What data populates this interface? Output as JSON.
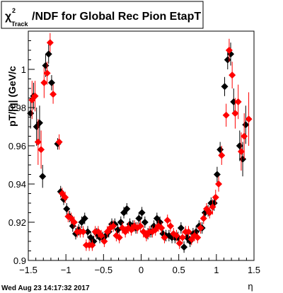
{
  "title": {
    "chi": "χ",
    "sup": "2",
    "sub": "Track",
    "rest": "/NDF for Global Rec Pion EtapT"
  },
  "timestamp": "Wed Aug 23 14:17:32 2017",
  "colors": {
    "black_series": "#000000",
    "red_series": "#ff0000",
    "frame": "#000000"
  },
  "chart_data": {
    "type": "scatter",
    "title": "χ²_Track/NDF for Global Rec Pion EtapT",
    "xlabel": "η",
    "ylabel": "pT/|q| (GeV/c",
    "xlim": [
      -1.5,
      1.5
    ],
    "ylim": [
      0.9,
      1.02
    ],
    "x_ticks": [
      -1.5,
      -1,
      -0.5,
      0,
      0.5,
      1,
      1.5
    ],
    "x_tick_labels": [
      "−1.5",
      "−1",
      "−0.5",
      "0",
      "0.5",
      "1",
      "1.5"
    ],
    "y_ticks": [
      0.9,
      0.92,
      0.94,
      0.96,
      0.98,
      1
    ],
    "y_tick_labels": [
      "0.9",
      "0.92",
      "0.94",
      "0.96",
      "0.98",
      "1"
    ],
    "grid": false,
    "legend": "none",
    "series": [
      {
        "marker": "diamond",
        "color": "#000000",
        "points": [
          {
            "x": -1.47,
            "y": 0.977,
            "err": 0.008
          },
          {
            "x": -1.43,
            "y": 0.986,
            "err": 0.007
          },
          {
            "x": -1.39,
            "y": 0.97,
            "err": 0.01
          },
          {
            "x": -1.35,
            "y": 0.972,
            "err": 0.009
          },
          {
            "x": -1.31,
            "y": 0.944,
            "err": 0.006
          },
          {
            "x": -1.27,
            "y": 1.002,
            "err": 0.006
          },
          {
            "x": -1.23,
            "y": 1.008,
            "err": 0.005
          },
          {
            "x": -1.19,
            "y": 0.993,
            "err": 0.004
          },
          {
            "x": -1.11,
            "y": 0.961,
            "err": 0.003
          },
          {
            "x": -1.07,
            "y": 0.936,
            "err": 0.003
          },
          {
            "x": -1.03,
            "y": 0.932,
            "err": 0.003
          },
          {
            "x": -0.99,
            "y": 0.927,
            "err": 0.003
          },
          {
            "x": -0.95,
            "y": 0.923,
            "err": 0.003
          },
          {
            "x": -0.91,
            "y": 0.918,
            "err": 0.003
          },
          {
            "x": -0.87,
            "y": 0.914,
            "err": 0.003
          },
          {
            "x": -0.83,
            "y": 0.916,
            "err": 0.003
          },
          {
            "x": -0.79,
            "y": 0.92,
            "err": 0.003
          },
          {
            "x": -0.75,
            "y": 0.922,
            "err": 0.003
          },
          {
            "x": -0.71,
            "y": 0.915,
            "err": 0.003
          },
          {
            "x": -0.67,
            "y": 0.912,
            "err": 0.003
          },
          {
            "x": -0.63,
            "y": 0.91,
            "err": 0.003
          },
          {
            "x": -0.59,
            "y": 0.914,
            "err": 0.003
          },
          {
            "x": -0.55,
            "y": 0.912,
            "err": 0.003
          },
          {
            "x": -0.51,
            "y": 0.912,
            "err": 0.003
          },
          {
            "x": -0.47,
            "y": 0.913,
            "err": 0.003
          },
          {
            "x": -0.43,
            "y": 0.915,
            "err": 0.003
          },
          {
            "x": -0.39,
            "y": 0.919,
            "err": 0.003
          },
          {
            "x": -0.35,
            "y": 0.919,
            "err": 0.003
          },
          {
            "x": -0.31,
            "y": 0.916,
            "err": 0.003
          },
          {
            "x": -0.27,
            "y": 0.92,
            "err": 0.003
          },
          {
            "x": -0.23,
            "y": 0.925,
            "err": 0.003
          },
          {
            "x": -0.19,
            "y": 0.927,
            "err": 0.003
          },
          {
            "x": -0.15,
            "y": 0.919,
            "err": 0.003
          },
          {
            "x": -0.11,
            "y": 0.918,
            "err": 0.003
          },
          {
            "x": -0.07,
            "y": 0.917,
            "err": 0.003
          },
          {
            "x": -0.03,
            "y": 0.922,
            "err": 0.003
          },
          {
            "x": 0.01,
            "y": 0.925,
            "err": 0.003
          },
          {
            "x": 0.05,
            "y": 0.92,
            "err": 0.003
          },
          {
            "x": 0.09,
            "y": 0.914,
            "err": 0.003
          },
          {
            "x": 0.13,
            "y": 0.915,
            "err": 0.003
          },
          {
            "x": 0.17,
            "y": 0.918,
            "err": 0.003
          },
          {
            "x": 0.21,
            "y": 0.922,
            "err": 0.003
          },
          {
            "x": 0.25,
            "y": 0.92,
            "err": 0.003
          },
          {
            "x": 0.29,
            "y": 0.914,
            "err": 0.003
          },
          {
            "x": 0.33,
            "y": 0.913,
            "err": 0.003
          },
          {
            "x": 0.37,
            "y": 0.913,
            "err": 0.003
          },
          {
            "x": 0.41,
            "y": 0.912,
            "err": 0.003
          },
          {
            "x": 0.45,
            "y": 0.912,
            "err": 0.003
          },
          {
            "x": 0.49,
            "y": 0.912,
            "err": 0.003
          },
          {
            "x": 0.53,
            "y": 0.917,
            "err": 0.003
          },
          {
            "x": 0.57,
            "y": 0.907,
            "err": 0.003
          },
          {
            "x": 0.61,
            "y": 0.912,
            "err": 0.003
          },
          {
            "x": 0.65,
            "y": 0.91,
            "err": 0.003
          },
          {
            "x": 0.69,
            "y": 0.914,
            "err": 0.003
          },
          {
            "x": 0.73,
            "y": 0.915,
            "err": 0.003
          },
          {
            "x": 0.77,
            "y": 0.918,
            "err": 0.003
          },
          {
            "x": 0.81,
            "y": 0.917,
            "err": 0.003
          },
          {
            "x": 0.85,
            "y": 0.925,
            "err": 0.003
          },
          {
            "x": 0.89,
            "y": 0.926,
            "err": 0.003
          },
          {
            "x": 0.93,
            "y": 0.93,
            "err": 0.003
          },
          {
            "x": 0.97,
            "y": 0.93,
            "err": 0.004
          },
          {
            "x": 1.01,
            "y": 0.945,
            "err": 0.004
          },
          {
            "x": 1.05,
            "y": 0.958,
            "err": 0.004
          },
          {
            "x": 1.11,
            "y": 0.991,
            "err": 0.005
          },
          {
            "x": 1.15,
            "y": 1.005,
            "err": 0.005
          },
          {
            "x": 1.19,
            "y": 1.008,
            "err": 0.006
          },
          {
            "x": 1.23,
            "y": 0.983,
            "err": 0.007
          },
          {
            "x": 1.31,
            "y": 0.96,
            "err": 0.008
          },
          {
            "x": 1.35,
            "y": 0.953,
            "err": 0.009
          },
          {
            "x": 1.39,
            "y": 0.971,
            "err": 0.01
          }
        ]
      },
      {
        "marker": "diamond",
        "color": "#ff0000",
        "points": [
          {
            "x": -1.45,
            "y": 0.984,
            "err": 0.01
          },
          {
            "x": -1.41,
            "y": 0.986,
            "err": 0.008
          },
          {
            "x": -1.37,
            "y": 0.962,
            "err": 0.012
          },
          {
            "x": -1.33,
            "y": 0.958,
            "err": 0.01
          },
          {
            "x": -1.29,
            "y": 0.993,
            "err": 0.008
          },
          {
            "x": -1.25,
            "y": 0.998,
            "err": 0.006
          },
          {
            "x": -1.21,
            "y": 1.014,
            "err": 0.005
          },
          {
            "x": -1.17,
            "y": 0.987,
            "err": 0.005
          },
          {
            "x": -1.09,
            "y": 0.962,
            "err": 0.004
          },
          {
            "x": -1.05,
            "y": 0.935,
            "err": 0.003
          },
          {
            "x": -1.01,
            "y": 0.933,
            "err": 0.003
          },
          {
            "x": -0.97,
            "y": 0.923,
            "err": 0.003
          },
          {
            "x": -0.93,
            "y": 0.922,
            "err": 0.003
          },
          {
            "x": -0.89,
            "y": 0.92,
            "err": 0.003
          },
          {
            "x": -0.85,
            "y": 0.915,
            "err": 0.003
          },
          {
            "x": -0.81,
            "y": 0.915,
            "err": 0.003
          },
          {
            "x": -0.77,
            "y": 0.915,
            "err": 0.003
          },
          {
            "x": -0.73,
            "y": 0.908,
            "err": 0.003
          },
          {
            "x": -0.69,
            "y": 0.908,
            "err": 0.003
          },
          {
            "x": -0.65,
            "y": 0.908,
            "err": 0.003
          },
          {
            "x": -0.61,
            "y": 0.915,
            "err": 0.003
          },
          {
            "x": -0.57,
            "y": 0.915,
            "err": 0.003
          },
          {
            "x": -0.53,
            "y": 0.913,
            "err": 0.003
          },
          {
            "x": -0.49,
            "y": 0.91,
            "err": 0.003
          },
          {
            "x": -0.45,
            "y": 0.915,
            "err": 0.003
          },
          {
            "x": -0.41,
            "y": 0.917,
            "err": 0.003
          },
          {
            "x": -0.37,
            "y": 0.918,
            "err": 0.003
          },
          {
            "x": -0.33,
            "y": 0.913,
            "err": 0.003
          },
          {
            "x": -0.29,
            "y": 0.912,
            "err": 0.003
          },
          {
            "x": -0.25,
            "y": 0.917,
            "err": 0.003
          },
          {
            "x": -0.21,
            "y": 0.915,
            "err": 0.003
          },
          {
            "x": -0.17,
            "y": 0.917,
            "err": 0.003
          },
          {
            "x": -0.13,
            "y": 0.916,
            "err": 0.003
          },
          {
            "x": -0.09,
            "y": 0.918,
            "err": 0.003
          },
          {
            "x": -0.05,
            "y": 0.917,
            "err": 0.003
          },
          {
            "x": -0.01,
            "y": 0.918,
            "err": 0.003
          },
          {
            "x": 0.03,
            "y": 0.915,
            "err": 0.003
          },
          {
            "x": 0.07,
            "y": 0.913,
            "err": 0.003
          },
          {
            "x": 0.11,
            "y": 0.915,
            "err": 0.003
          },
          {
            "x": 0.15,
            "y": 0.915,
            "err": 0.003
          },
          {
            "x": 0.19,
            "y": 0.916,
            "err": 0.003
          },
          {
            "x": 0.23,
            "y": 0.918,
            "err": 0.003
          },
          {
            "x": 0.27,
            "y": 0.917,
            "err": 0.003
          },
          {
            "x": 0.31,
            "y": 0.912,
            "err": 0.003
          },
          {
            "x": 0.35,
            "y": 0.921,
            "err": 0.003
          },
          {
            "x": 0.39,
            "y": 0.918,
            "err": 0.003
          },
          {
            "x": 0.43,
            "y": 0.914,
            "err": 0.003
          },
          {
            "x": 0.47,
            "y": 0.913,
            "err": 0.003
          },
          {
            "x": 0.51,
            "y": 0.909,
            "err": 0.003
          },
          {
            "x": 0.55,
            "y": 0.912,
            "err": 0.003
          },
          {
            "x": 0.59,
            "y": 0.915,
            "err": 0.003
          },
          {
            "x": 0.63,
            "y": 0.915,
            "err": 0.003
          },
          {
            "x": 0.67,
            "y": 0.911,
            "err": 0.003
          },
          {
            "x": 0.71,
            "y": 0.913,
            "err": 0.003
          },
          {
            "x": 0.75,
            "y": 0.912,
            "err": 0.003
          },
          {
            "x": 0.79,
            "y": 0.917,
            "err": 0.003
          },
          {
            "x": 0.83,
            "y": 0.922,
            "err": 0.003
          },
          {
            "x": 0.87,
            "y": 0.927,
            "err": 0.003
          },
          {
            "x": 0.91,
            "y": 0.925,
            "err": 0.003
          },
          {
            "x": 0.95,
            "y": 0.928,
            "err": 0.004
          },
          {
            "x": 0.99,
            "y": 0.933,
            "err": 0.004
          },
          {
            "x": 1.03,
            "y": 0.94,
            "err": 0.004
          },
          {
            "x": 1.07,
            "y": 0.955,
            "err": 0.005
          },
          {
            "x": 1.13,
            "y": 0.976,
            "err": 0.006
          },
          {
            "x": 1.17,
            "y": 1.01,
            "err": 0.006
          },
          {
            "x": 1.21,
            "y": 0.997,
            "err": 0.007
          },
          {
            "x": 1.25,
            "y": 0.977,
            "err": 0.008
          },
          {
            "x": 1.29,
            "y": 0.983,
            "err": 0.009
          },
          {
            "x": 1.33,
            "y": 0.957,
            "err": 0.01
          },
          {
            "x": 1.37,
            "y": 0.965,
            "err": 0.012
          },
          {
            "x": 1.43,
            "y": 0.974,
            "err": 0.014
          }
        ]
      }
    ]
  }
}
